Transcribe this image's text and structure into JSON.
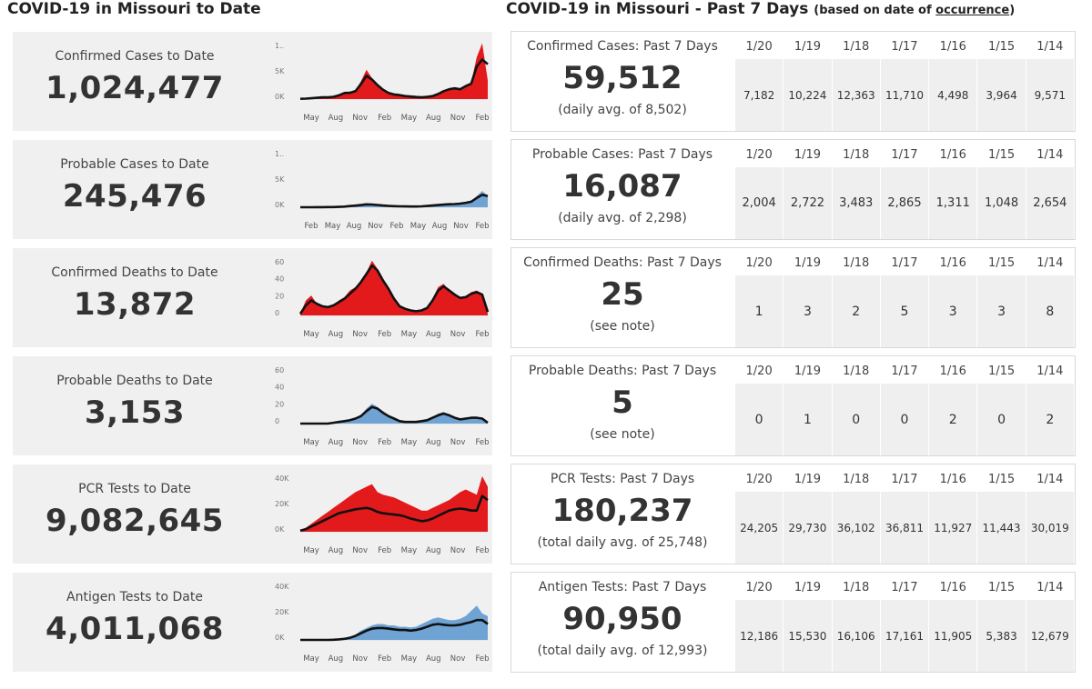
{
  "left_title": "COVID-19 in Missouri to Date",
  "right_title": "COVID-19 in Missouri - Past 7 Days",
  "right_subtitle_prefix": "(based on date of",
  "right_subtitle_link": "occurrence",
  "right_subtitle_suffix": ")",
  "days": [
    "1/20",
    "1/19",
    "1/18",
    "1/17",
    "1/16",
    "1/15",
    "1/14"
  ],
  "colors": {
    "red": "#e31a1c",
    "blue": "#6fa3d4",
    "line": "#111111",
    "card": "#f0f0f0"
  },
  "cards": [
    {
      "id": "confirmed-cases",
      "to_date_label": "Confirmed Cases to Date",
      "to_date_value": "1,024,477",
      "past_label": "Confirmed Cases: Past 7 Days",
      "past_value": "59,512",
      "past_note": "(daily avg. of 8,502)",
      "daily": [
        "7,182",
        "10,224",
        "12,363",
        "11,710",
        "4,498",
        "3,964",
        "9,571"
      ],
      "chart_data": {
        "type": "area",
        "fill": "red",
        "y_ticks": [
          "1..",
          "5K",
          "0K"
        ],
        "x_ticks": [
          "May",
          "Aug",
          "Nov",
          "Feb",
          "May",
          "Aug",
          "Nov",
          "Feb"
        ],
        "ylim": [
          0,
          12500
        ],
        "values": [
          50,
          100,
          200,
          300,
          400,
          350,
          500,
          900,
          1500,
          1300,
          1800,
          3800,
          6300,
          4500,
          3200,
          2100,
          1400,
          1100,
          900,
          700,
          600,
          500,
          400,
          500,
          700,
          1200,
          1800,
          2200,
          2400,
          2000,
          3000,
          3600,
          9000,
          12000,
          4000
        ],
        "trend": [
          50,
          100,
          180,
          280,
          380,
          380,
          480,
          800,
          1300,
          1350,
          1700,
          3200,
          5000,
          4200,
          3000,
          2000,
          1300,
          1000,
          850,
          650,
          550,
          450,
          400,
          480,
          650,
          1100,
          1700,
          2100,
          2300,
          2100,
          2800,
          3300,
          7000,
          8500,
          7500
        ]
      }
    },
    {
      "id": "probable-cases",
      "to_date_label": "Probable Cases to Date",
      "to_date_value": "245,476",
      "past_label": "Probable Cases: Past 7 Days",
      "past_value": "16,087",
      "past_note": "(daily avg. of 2,298)",
      "daily": [
        "2,004",
        "2,722",
        "3,483",
        "2,865",
        "1,311",
        "1,048",
        "2,654"
      ],
      "chart_data": {
        "type": "area",
        "fill": "blue",
        "y_ticks": [
          "1..",
          "5K",
          "0K"
        ],
        "x_ticks": [
          "Feb",
          "May",
          "Aug",
          "Nov",
          "Feb",
          "May",
          "Aug",
          "Nov",
          "Feb"
        ],
        "ylim": [
          0,
          12500
        ],
        "values": [
          0,
          0,
          0,
          10,
          20,
          30,
          40,
          80,
          150,
          300,
          400,
          500,
          700,
          600,
          500,
          400,
          300,
          250,
          200,
          180,
          150,
          150,
          200,
          300,
          400,
          500,
          600,
          700,
          700,
          800,
          1000,
          1300,
          2400,
          3500,
          2500
        ],
        "trend": [
          0,
          0,
          0,
          10,
          20,
          30,
          40,
          70,
          130,
          260,
          360,
          460,
          620,
          580,
          480,
          380,
          290,
          240,
          200,
          170,
          150,
          150,
          190,
          280,
          370,
          470,
          560,
          650,
          680,
          780,
          950,
          1200,
          2000,
          2700,
          2400
        ]
      }
    },
    {
      "id": "confirmed-deaths",
      "to_date_label": "Confirmed Deaths to Date",
      "to_date_value": "13,872",
      "past_label": "Confirmed Deaths: Past 7 Days",
      "past_value": "25",
      "past_note": "(see note)",
      "daily": [
        "1",
        "3",
        "2",
        "5",
        "3",
        "3",
        "8"
      ],
      "chart_data": {
        "type": "area",
        "fill": "red",
        "y_ticks": [
          "60",
          "40",
          "20",
          "0"
        ],
        "x_ticks": [
          "May",
          "Aug",
          "Nov",
          "Feb",
          "May",
          "Aug",
          "Nov",
          "Feb"
        ],
        "ylim": [
          0,
          70
        ],
        "values": [
          2,
          18,
          24,
          14,
          10,
          9,
          12,
          18,
          22,
          30,
          34,
          42,
          52,
          66,
          56,
          44,
          34,
          20,
          10,
          8,
          6,
          5,
          6,
          10,
          20,
          34,
          38,
          30,
          24,
          20,
          22,
          28,
          30,
          26,
          2
        ],
        "trend": [
          2,
          12,
          18,
          14,
          11,
          10,
          12,
          16,
          20,
          26,
          32,
          40,
          50,
          60,
          54,
          42,
          32,
          20,
          11,
          8,
          6,
          5,
          6,
          9,
          18,
          30,
          35,
          30,
          25,
          21,
          22,
          26,
          28,
          25,
          4
        ]
      }
    },
    {
      "id": "probable-deaths",
      "to_date_label": "Probable Deaths to Date",
      "to_date_value": "3,153",
      "past_label": "Probable Deaths: Past 7 Days",
      "past_value": "5",
      "past_note": "(see note)",
      "daily": [
        "0",
        "1",
        "0",
        "0",
        "2",
        "0",
        "2"
      ],
      "chart_data": {
        "type": "area",
        "fill": "blue",
        "y_ticks": [
          "60",
          "40",
          "20",
          "0"
        ],
        "x_ticks": [
          "May",
          "Aug",
          "Nov",
          "Feb",
          "May",
          "Aug",
          "Nov",
          "Feb"
        ],
        "ylim": [
          0,
          70
        ],
        "values": [
          0,
          0,
          0,
          0,
          0,
          0,
          1,
          2,
          3,
          4,
          6,
          10,
          18,
          24,
          20,
          14,
          10,
          6,
          3,
          2,
          2,
          2,
          3,
          4,
          8,
          12,
          14,
          10,
          6,
          5,
          6,
          7,
          8,
          6,
          1
        ],
        "trend": [
          0,
          0,
          0,
          0,
          0,
          0,
          1,
          2,
          3,
          4,
          6,
          9,
          15,
          20,
          18,
          13,
          9,
          6,
          3,
          2,
          2,
          2,
          3,
          4,
          7,
          10,
          12,
          10,
          7,
          5,
          6,
          7,
          7,
          6,
          1
        ]
      }
    },
    {
      "id": "pcr-tests",
      "to_date_label": "PCR Tests to Date",
      "to_date_value": "9,082,645",
      "past_label": "PCR Tests: Past 7 Days",
      "past_value": "180,237",
      "past_note": "(total daily avg. of 25,748)",
      "daily": [
        "24,205",
        "29,730",
        "36,102",
        "36,811",
        "11,927",
        "11,443",
        "30,019"
      ],
      "chart_data": {
        "type": "area",
        "fill": "red",
        "y_ticks": [
          "40K",
          "20K",
          "0K"
        ],
        "x_ticks": [
          "May",
          "Aug",
          "Nov",
          "Feb",
          "May",
          "Aug",
          "Nov",
          "Feb"
        ],
        "ylim": [
          0,
          44000
        ],
        "values": [
          1000,
          3000,
          6000,
          9000,
          12000,
          15000,
          18000,
          21000,
          24000,
          27000,
          30000,
          32000,
          34000,
          36000,
          30000,
          28000,
          27000,
          26000,
          24000,
          22000,
          20000,
          18000,
          16000,
          16000,
          18000,
          20000,
          22000,
          24000,
          27000,
          30000,
          32000,
          30000,
          28000,
          42000,
          34000
        ],
        "trend": [
          800,
          2000,
          4000,
          6000,
          8000,
          10000,
          12000,
          14000,
          15000,
          16000,
          17000,
          17500,
          18000,
          17000,
          15000,
          14000,
          13500,
          13000,
          12500,
          11500,
          10000,
          9000,
          8000,
          8500,
          10000,
          12000,
          14000,
          16000,
          17000,
          17500,
          17000,
          16000,
          16000,
          27000,
          24000
        ]
      }
    },
    {
      "id": "antigen-tests",
      "to_date_label": "Antigen Tests to Date",
      "to_date_value": "4,011,068",
      "past_label": "Antigen Tests: Past 7 Days",
      "past_value": "90,950",
      "past_note": "(total daily avg. of 12,993)",
      "daily": [
        "12,186",
        "15,530",
        "16,106",
        "17,161",
        "11,905",
        "5,383",
        "12,679"
      ],
      "chart_data": {
        "type": "area",
        "fill": "blue",
        "y_ticks": [
          "40K",
          "20K",
          "0K"
        ],
        "x_ticks": [
          "May",
          "Aug",
          "Nov",
          "Feb",
          "May",
          "Aug",
          "Nov",
          "Feb"
        ],
        "ylim": [
          0,
          44000
        ],
        "values": [
          0,
          0,
          0,
          0,
          0,
          0,
          200,
          500,
          1000,
          2000,
          4000,
          7000,
          9000,
          11000,
          12000,
          12000,
          11000,
          11000,
          10000,
          10000,
          9500,
          10000,
          12000,
          14000,
          16000,
          17000,
          16000,
          15000,
          15000,
          16000,
          18000,
          22000,
          26000,
          20000,
          18000
        ],
        "trend": [
          0,
          0,
          0,
          0,
          0,
          0,
          150,
          400,
          800,
          1600,
          3000,
          5000,
          7000,
          8500,
          9000,
          9000,
          8500,
          8000,
          7500,
          7500,
          7000,
          7500,
          8500,
          10000,
          11500,
          12000,
          11500,
          11000,
          11000,
          11500,
          12500,
          13500,
          15000,
          15000,
          12000
        ]
      }
    }
  ]
}
